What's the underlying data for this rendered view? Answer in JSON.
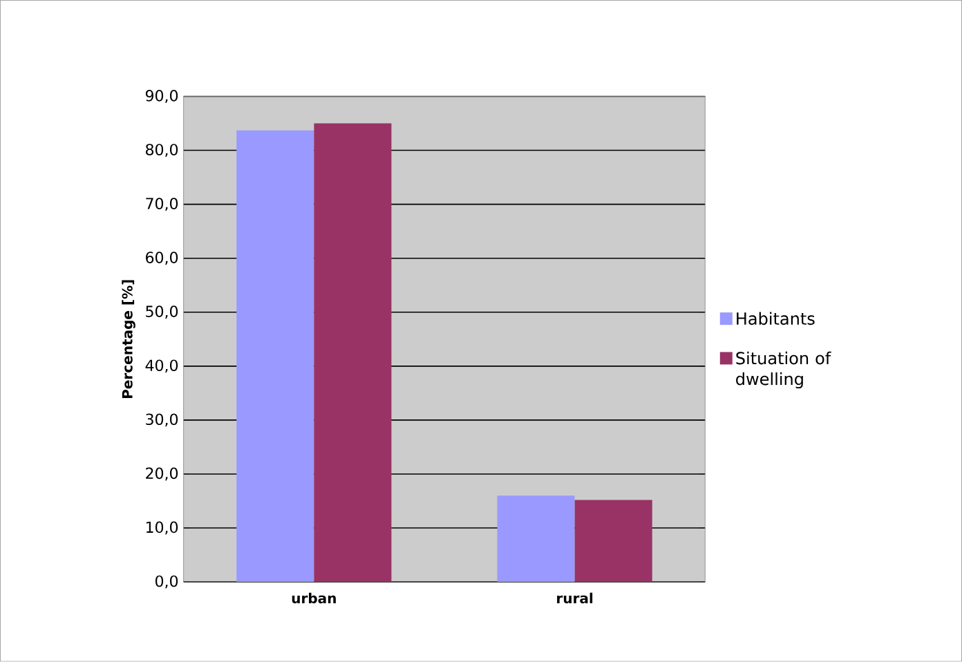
{
  "chart_data": {
    "type": "bar",
    "ylabel": "Percentage [%]",
    "categories": [
      "urban",
      "rural"
    ],
    "series": [
      {
        "name": "Habitants",
        "color": "#9999ff",
        "values": [
          83.7,
          16.0
        ]
      },
      {
        "name": "Situation of dwelling",
        "color": "#993366",
        "values": [
          85.0,
          15.2
        ]
      }
    ],
    "ylim": [
      0,
      90
    ],
    "yticks": [
      {
        "value": 0,
        "label": "0,0"
      },
      {
        "value": 10,
        "label": "10,0"
      },
      {
        "value": 20,
        "label": "20,0"
      },
      {
        "value": 30,
        "label": "30,0"
      },
      {
        "value": 40,
        "label": "40,0"
      },
      {
        "value": 50,
        "label": "50,0"
      },
      {
        "value": 60,
        "label": "60,0"
      },
      {
        "value": 70,
        "label": "70,0"
      },
      {
        "value": 80,
        "label": "80,0"
      },
      {
        "value": 90,
        "label": "90,0"
      }
    ],
    "grid": "y",
    "legend": "right"
  }
}
